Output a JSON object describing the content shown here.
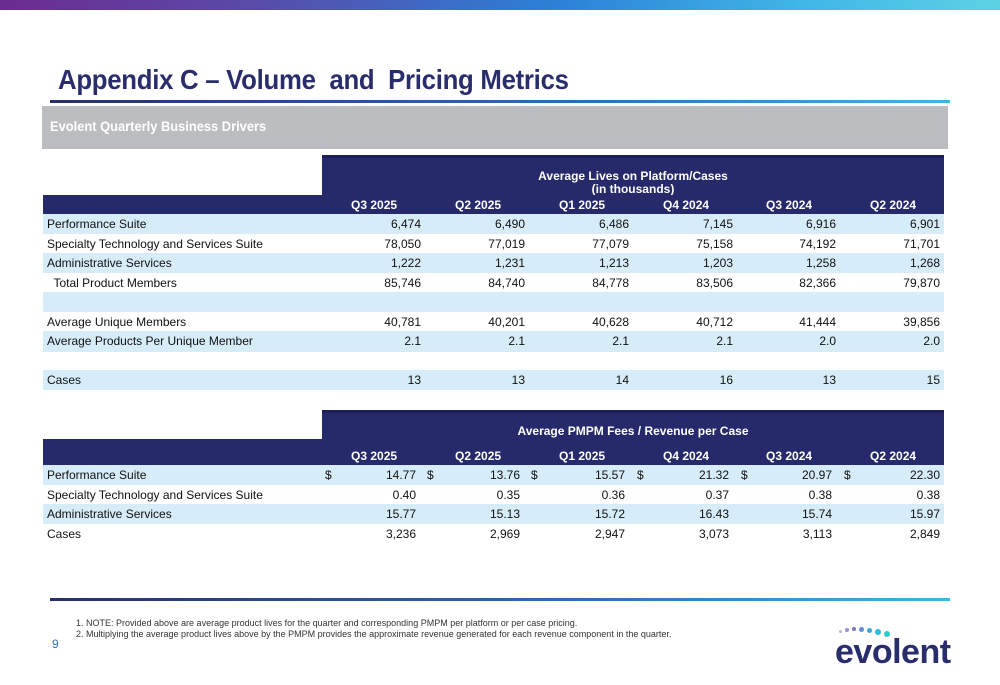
{
  "title": "Appendix C – Volume  and  Pricing Metrics",
  "banner": "Evolent Quarterly Business Drivers",
  "columns": [
    "Q3 2025",
    "Q2 2025",
    "Q1 2025",
    "Q4 2024",
    "Q3 2024",
    "Q2 2024"
  ],
  "table1": {
    "header_line1": "Average Lives on Platform/Cases",
    "header_line2": "(in thousands)",
    "rows": [
      {
        "label": "Performance Suite",
        "values": [
          "6,474",
          "6,490",
          "6,486",
          "7,145",
          "6,916",
          "6,901"
        ]
      },
      {
        "label": "Specialty Technology and Services Suite",
        "values": [
          "78,050",
          "77,019",
          "77,079",
          "75,158",
          "74,192",
          "71,701"
        ]
      },
      {
        "label": "Administrative Services",
        "values": [
          "1,222",
          "1,231",
          "1,213",
          "1,203",
          "1,258",
          "1,268"
        ]
      },
      {
        "label": "  Total Product Members",
        "values": [
          "85,746",
          "84,740",
          "84,778",
          "83,506",
          "82,366",
          "79,870"
        ]
      },
      {
        "label": "Average Unique Members",
        "values": [
          "40,781",
          "40,201",
          "40,628",
          "40,712",
          "41,444",
          "39,856"
        ]
      },
      {
        "label": "Average Products Per Unique Member",
        "values": [
          "2.1",
          "2.1",
          "2.1",
          "2.1",
          "2.0",
          "2.0"
        ]
      },
      {
        "label": "Cases",
        "values": [
          "13",
          "13",
          "14",
          "16",
          "13",
          "15"
        ]
      }
    ]
  },
  "table2": {
    "header": "Average PMPM Fees / Revenue per Case",
    "currency_symbol": "$",
    "rows": [
      {
        "label": "Performance Suite",
        "values": [
          "14.77",
          "13.76",
          "15.57",
          "21.32",
          "20.97",
          "22.30"
        ]
      },
      {
        "label": "Specialty Technology and Services Suite",
        "values": [
          "0.40",
          "0.35",
          "0.36",
          "0.37",
          "0.38",
          "0.38"
        ]
      },
      {
        "label": "Administrative Services",
        "values": [
          "15.77",
          "15.13",
          "15.72",
          "16.43",
          "15.74",
          "15.97"
        ]
      },
      {
        "label": "Cases",
        "values": [
          "3,236",
          "2,969",
          "2,947",
          "3,073",
          "3,113",
          "2,849"
        ]
      }
    ]
  },
  "footnotes": [
    "1. NOTE: Provided above are average product lives for the quarter and corresponding PMPM per platform or per case pricing.",
    "2. Multiplying the average product lives above by the PMPM provides the approximate revenue generated for each revenue component in the quarter."
  ],
  "page_number": "9",
  "logo_text": "evolent"
}
